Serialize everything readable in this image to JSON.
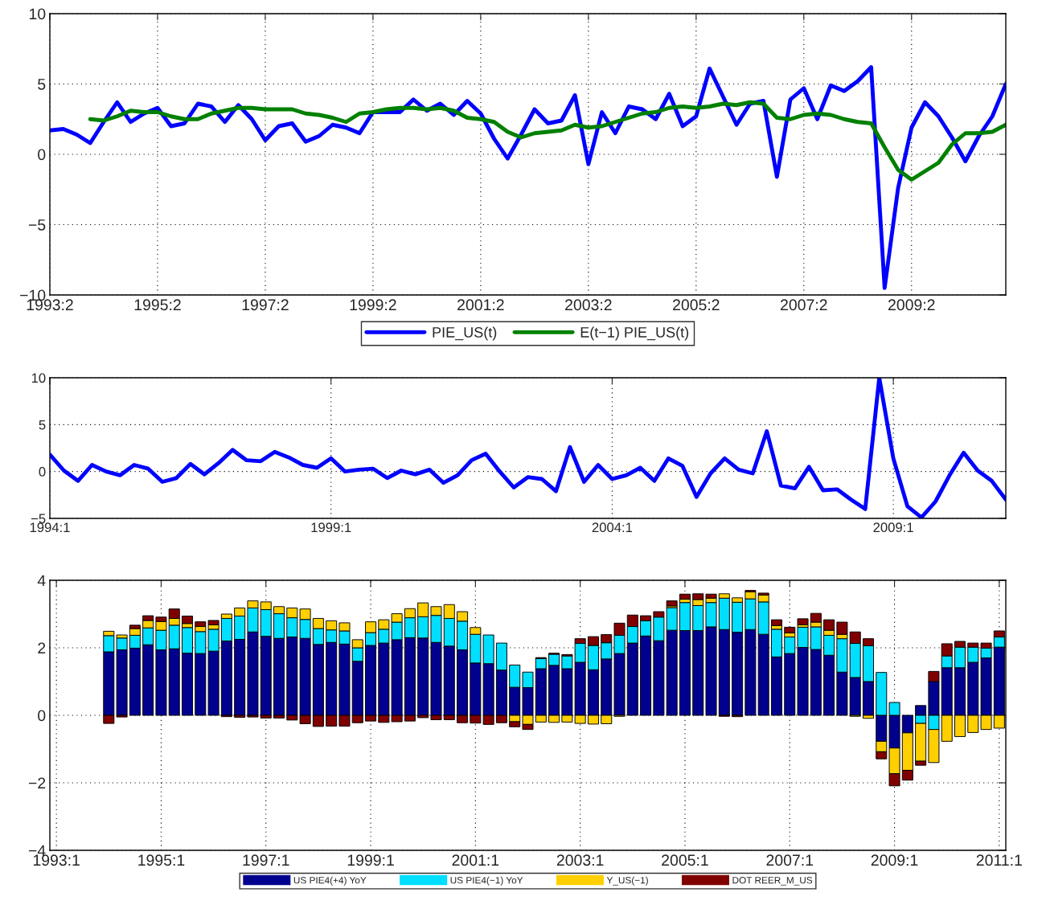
{
  "chart_data": [
    {
      "type": "line",
      "categories": [
        "1993:2",
        null,
        null,
        null,
        null,
        null,
        null,
        null,
        "1995:2",
        null,
        null,
        null,
        null,
        null,
        null,
        null,
        "1997:2",
        null,
        null,
        null,
        null,
        null,
        null,
        null,
        "1999:2",
        null,
        null,
        null,
        null,
        null,
        null,
        null,
        "2001:2",
        null,
        null,
        null,
        null,
        null,
        null,
        null,
        "2003:2",
        null,
        null,
        null,
        null,
        null,
        null,
        null,
        "2005:2",
        null,
        null,
        null,
        null,
        null,
        null,
        null,
        "2007:2",
        null,
        null,
        null,
        null,
        null,
        null,
        null,
        "2009:2",
        null,
        null,
        null,
        null,
        null,
        null,
        null
      ],
      "series": [
        {
          "name": "PIE_US(t)",
          "color": "#0000ff",
          "values": [
            1.7,
            1.8,
            1.4,
            0.8,
            2.3,
            3.7,
            2.3,
            2.9,
            3.3,
            2.0,
            2.2,
            3.6,
            3.4,
            2.3,
            3.5,
            2.5,
            1.0,
            2.0,
            2.2,
            0.9,
            1.3,
            2.1,
            1.9,
            1.5,
            3.0,
            3.0,
            3.0,
            3.9,
            3.1,
            3.6,
            2.8,
            3.8,
            2.9,
            1.1,
            -0.3,
            1.4,
            3.2,
            2.2,
            2.4,
            4.2,
            -0.7,
            3.0,
            1.5,
            3.4,
            3.2,
            2.5,
            4.3,
            2.0,
            2.7,
            6.1,
            4.1,
            2.1,
            3.6,
            3.8,
            -1.6,
            3.9,
            4.7,
            2.5,
            4.9,
            4.5,
            5.2,
            6.2,
            -9.5,
            -2.4,
            1.9,
            3.7,
            2.7,
            1.2,
            -0.5,
            1.3,
            2.7,
            5.0
          ]
        },
        {
          "name": "E(t−1) PIE_US(t)",
          "color": "#008000",
          "values": [
            null,
            null,
            null,
            2.5,
            2.4,
            2.7,
            3.1,
            3.0,
            3.0,
            2.7,
            2.5,
            2.5,
            2.9,
            3.1,
            3.3,
            3.3,
            3.2,
            3.2,
            3.2,
            2.9,
            2.8,
            2.6,
            2.3,
            2.9,
            3.0,
            3.2,
            3.3,
            3.3,
            3.2,
            3.3,
            3.1,
            2.6,
            2.5,
            2.3,
            1.6,
            1.2,
            1.5,
            1.6,
            1.7,
            2.1,
            1.9,
            2.0,
            2.3,
            2.6,
            2.9,
            3.0,
            3.3,
            3.4,
            3.3,
            3.4,
            3.6,
            3.5,
            3.7,
            3.6,
            2.6,
            2.5,
            2.8,
            2.9,
            2.8,
            2.5,
            2.3,
            2.2,
            0.5,
            -1.1,
            -1.8,
            -1.2,
            -0.6,
            0.7,
            1.5,
            1.5,
            1.6,
            2.1
          ]
        }
      ],
      "ylim": [
        -10,
        10
      ],
      "yticks": [
        -10,
        -5,
        0,
        5,
        10
      ],
      "grid": true,
      "legend": "bottom"
    },
    {
      "type": "line",
      "categories": [
        "1994:1",
        null,
        null,
        null,
        null,
        null,
        null,
        null,
        null,
        null,
        null,
        null,
        null,
        null,
        null,
        null,
        null,
        null,
        null,
        null,
        "1999:1",
        null,
        null,
        null,
        null,
        null,
        null,
        null,
        null,
        null,
        null,
        null,
        null,
        null,
        null,
        null,
        null,
        null,
        null,
        null,
        "2004:1",
        null,
        null,
        null,
        null,
        null,
        null,
        null,
        null,
        null,
        null,
        null,
        null,
        null,
        null,
        null,
        null,
        null,
        null,
        null,
        "2009:1",
        null,
        null,
        null,
        null,
        null,
        null,
        null,
        null
      ],
      "series": [
        {
          "color": "#0000ff",
          "values": [
            1.8,
            0.1,
            -1.0,
            0.7,
            0.0,
            -0.4,
            0.7,
            0.3,
            -1.1,
            -0.7,
            0.8,
            -0.3,
            0.9,
            2.3,
            1.2,
            1.1,
            2.1,
            1.5,
            0.7,
            0.4,
            1.4,
            0.0,
            0.2,
            0.3,
            -0.7,
            0.1,
            -0.3,
            0.2,
            -1.2,
            -0.4,
            1.2,
            1.9,
            0.0,
            -1.7,
            -0.6,
            -0.8,
            -2.1,
            2.6,
            -1.1,
            0.7,
            -0.8,
            -0.4,
            0.4,
            -1.0,
            1.4,
            0.6,
            -2.7,
            -0.2,
            1.4,
            0.2,
            -0.2,
            4.3,
            -1.5,
            -1.8,
            0.5,
            -2.0,
            -1.9,
            -3.0,
            -4.0,
            10.0,
            1.4,
            -3.7,
            -4.9,
            -3.2,
            -0.4,
            2.0,
            0.1,
            -1.0,
            -3.0
          ]
        }
      ],
      "ylim": [
        -5,
        10
      ],
      "yticks": [
        -5,
        0,
        5,
        10
      ],
      "grid": true
    },
    {
      "type": "bar",
      "stacked": true,
      "categories": [
        "1993:1",
        null,
        null,
        null,
        null,
        null,
        null,
        null,
        "1995:1",
        null,
        null,
        null,
        null,
        null,
        null,
        null,
        "1997:1",
        null,
        null,
        null,
        null,
        null,
        null,
        null,
        "1999:1",
        null,
        null,
        null,
        null,
        null,
        null,
        null,
        "2001:1",
        null,
        null,
        null,
        null,
        null,
        null,
        null,
        "2003:1",
        null,
        null,
        null,
        null,
        null,
        null,
        null,
        "2005:1",
        null,
        null,
        null,
        null,
        null,
        null,
        null,
        "2007:1",
        null,
        null,
        null,
        null,
        null,
        null,
        null,
        "2009:1",
        null,
        null,
        null,
        null,
        null,
        null,
        null,
        "2011:1"
      ],
      "series": [
        {
          "name": "US PIE4(+4) YoY",
          "color": "#00008f",
          "values": [
            null,
            null,
            null,
            null,
            1.88,
            1.94,
            1.99,
            2.09,
            1.94,
            1.97,
            1.84,
            1.83,
            1.9,
            2.2,
            2.25,
            2.47,
            2.34,
            2.28,
            2.32,
            2.28,
            2.1,
            2.16,
            2.11,
            1.6,
            2.07,
            2.14,
            2.24,
            2.3,
            2.29,
            2.16,
            2.05,
            1.94,
            1.55,
            1.53,
            1.34,
            0.83,
            0.82,
            1.38,
            1.48,
            1.38,
            1.57,
            1.35,
            1.67,
            1.83,
            2.14,
            2.35,
            2.21,
            2.52,
            2.51,
            2.51,
            2.62,
            2.54,
            2.46,
            2.54,
            2.4,
            1.73,
            1.83,
            2.01,
            1.95,
            1.78,
            1.28,
            1.12,
            1.0,
            -0.77,
            -0.97,
            -0.52,
            0.29,
            1.0,
            1.41,
            1.41,
            1.57,
            1.7,
            2.02
          ]
        },
        {
          "name": "US PIE4(−1) YoY",
          "color": "#00dfff",
          "values": [
            null,
            null,
            null,
            null,
            0.48,
            0.35,
            0.38,
            0.5,
            0.58,
            0.7,
            0.76,
            0.65,
            0.65,
            0.67,
            0.69,
            0.71,
            0.79,
            0.73,
            0.57,
            0.56,
            0.47,
            0.37,
            0.39,
            0.4,
            0.38,
            0.41,
            0.52,
            0.59,
            0.63,
            0.8,
            0.82,
            0.85,
            0.85,
            0.85,
            0.8,
            0.66,
            0.46,
            0.3,
            0.33,
            0.38,
            0.56,
            0.72,
            0.48,
            0.54,
            0.49,
            0.45,
            0.7,
            0.67,
            0.83,
            0.74,
            0.72,
            0.93,
            0.89,
            0.91,
            0.96,
            0.82,
            0.49,
            0.6,
            0.67,
            0.59,
            0.99,
            1.01,
            1.06,
            1.27,
            0.38,
            0,
            -0.24,
            -0.42,
            0.35,
            0.61,
            0.45,
            0.29,
            0.3
          ]
        },
        {
          "name": "Y_US(−1)",
          "color": "#ffcf00",
          "values": [
            null,
            null,
            null,
            null,
            0.13,
            0.09,
            0.2,
            0.22,
            0.26,
            0.2,
            0.12,
            0.15,
            0.13,
            0.13,
            0.24,
            0.21,
            0.23,
            0.21,
            0.29,
            0.31,
            0.3,
            0.27,
            0.24,
            0.24,
            0.32,
            0.28,
            0.25,
            0.27,
            0.41,
            0.26,
            0.41,
            0.28,
            0.2,
            0,
            0,
            -0.19,
            -0.27,
            -0.2,
            -0.21,
            -0.2,
            -0.24,
            -0.26,
            -0.25,
            -0.03,
            0,
            0,
            0,
            0.05,
            0.1,
            0.18,
            0.13,
            0.13,
            0.13,
            0.21,
            0.2,
            0.11,
            0.12,
            0.07,
            0.14,
            0.15,
            0.13,
            -0.03,
            -0.09,
            -0.31,
            -0.76,
            -1.11,
            -1.12,
            -0.98,
            -0.77,
            -0.63,
            -0.51,
            -0.42,
            -0.38
          ]
        },
        {
          "name": "DOT REER_M_US",
          "color": "#800000",
          "values": [
            null,
            null,
            null,
            null,
            -0.24,
            -0.05,
            0.1,
            0.14,
            0.13,
            0.28,
            0.22,
            0.14,
            0.13,
            -0.04,
            -0.06,
            -0.05,
            -0.08,
            -0.08,
            -0.14,
            -0.25,
            -0.33,
            -0.32,
            -0.32,
            -0.22,
            -0.17,
            -0.21,
            -0.19,
            -0.17,
            -0.07,
            -0.13,
            -0.13,
            -0.22,
            -0.23,
            -0.27,
            -0.22,
            -0.15,
            -0.15,
            0.03,
            0.03,
            0.04,
            0.14,
            0.26,
            0.24,
            0.36,
            0.34,
            0.15,
            0.16,
            0.15,
            0.15,
            0.17,
            0.12,
            -0.03,
            -0.04,
            0.04,
            0.06,
            0.17,
            0.17,
            0.18,
            0.26,
            0.31,
            0.36,
            0.34,
            0.21,
            -0.21,
            -0.36,
            -0.29,
            -0.12,
            0.3,
            0.36,
            0.17,
            0.12,
            0.15,
            0.18
          ]
        }
      ],
      "ylim": [
        -4,
        4
      ],
      "yticks": [
        -4,
        -2,
        0,
        2,
        4
      ],
      "grid": true,
      "legend": "bottom"
    }
  ]
}
